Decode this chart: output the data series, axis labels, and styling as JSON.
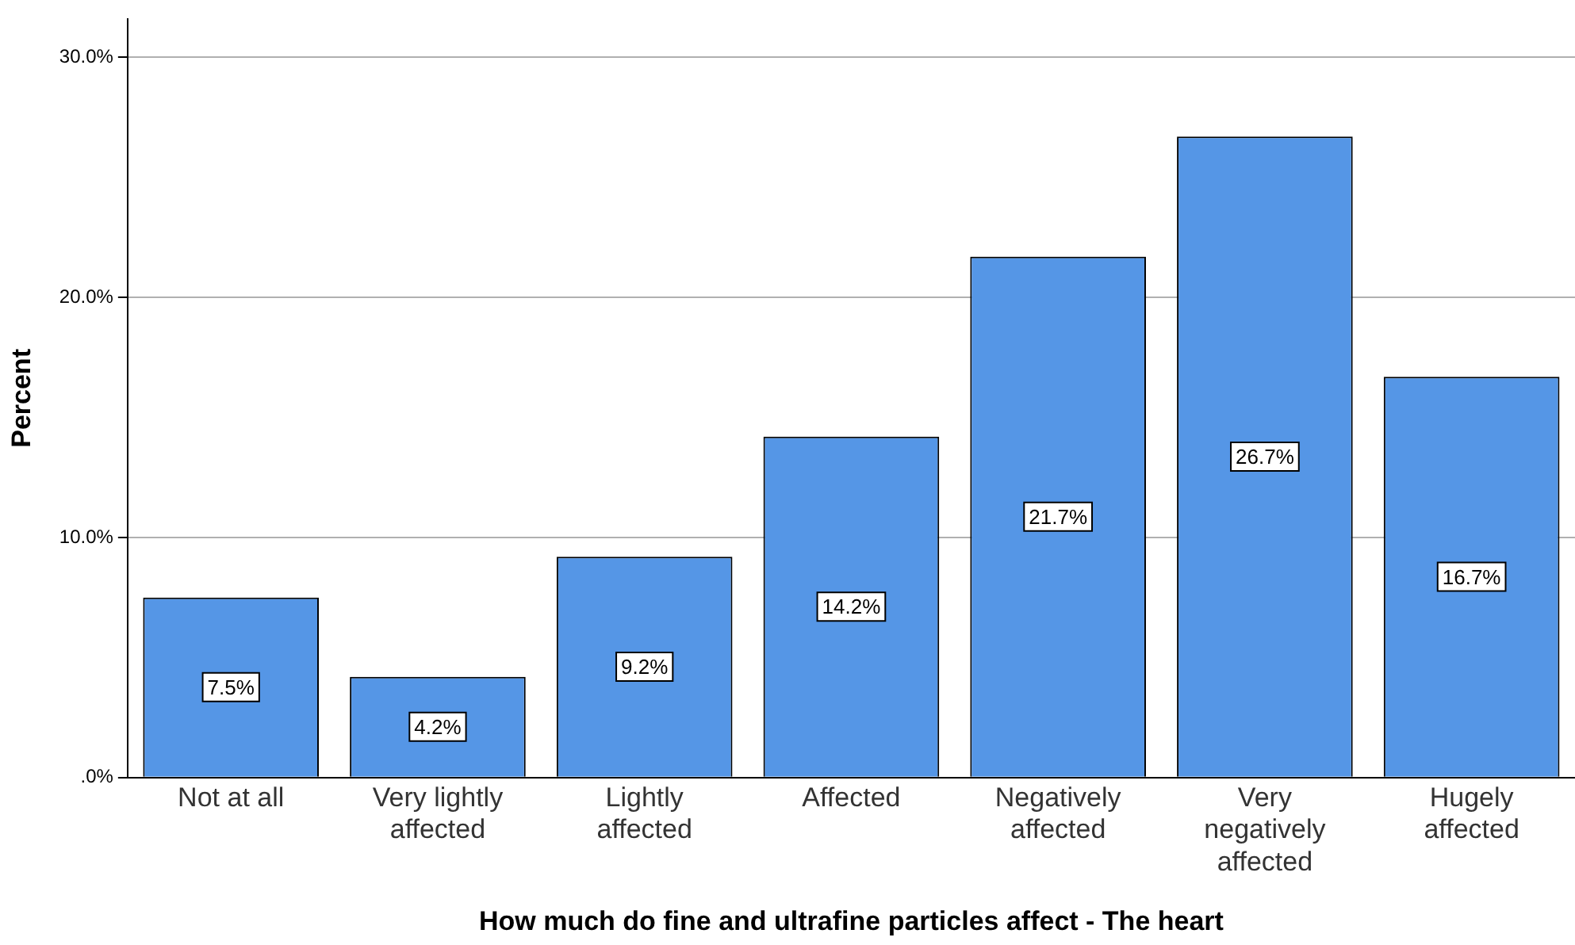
{
  "chart_data": {
    "type": "bar",
    "xlabel": "How much do fine and ultrafine particles affect - The heart",
    "ylabel": "Percent",
    "categories": [
      "Not at all",
      "Very lightly affected",
      "Lightly affected",
      "Affected",
      "Negatively affected",
      "Very negatively affected",
      "Hugely affected"
    ],
    "values": [
      7.5,
      4.2,
      9.2,
      14.2,
      21.7,
      26.7,
      16.7
    ],
    "value_labels": [
      "7.5%",
      "4.2%",
      "9.2%",
      "14.2%",
      "21.7%",
      "26.7%",
      "16.7%"
    ],
    "color": "#5596e6",
    "ylim": [
      0,
      31.6
    ],
    "yticks": [
      {
        "value": 0,
        "label": ".0%"
      },
      {
        "value": 10,
        "label": "10.0%"
      },
      {
        "value": 20,
        "label": "20.0%"
      },
      {
        "value": 30,
        "label": "30.0%"
      }
    ],
    "grid": "y"
  }
}
